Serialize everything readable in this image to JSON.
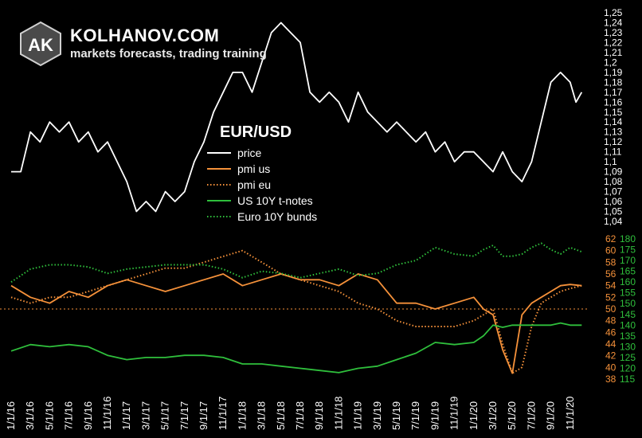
{
  "brand": {
    "logo_text": "AK",
    "name": "KOLHANOV.COM",
    "tagline": "markets forecasts, trading training"
  },
  "chart_data": {
    "type": "line",
    "title": "EUR/USD",
    "colors": {
      "price": "#ffffff",
      "pmi_us": "#f5913a",
      "pmi_eu": "#f5913a",
      "us10y": "#2fbf3c",
      "euro10y": "#2fbf3c",
      "refline": "#f5913a"
    },
    "legend": {
      "placement": "center",
      "items": [
        {
          "label": "price",
          "color": "#ffffff",
          "dash": "solid"
        },
        {
          "label": "pmi us",
          "color": "#f5913a",
          "dash": "solid"
        },
        {
          "label": "pmi eu",
          "color": "#f5913a",
          "dash": "dotted"
        },
        {
          "label": "US 10Y t-notes",
          "color": "#2fbf3c",
          "dash": "solid"
        },
        {
          "label": "Euro 10Y bunds",
          "color": "#2fbf3c",
          "dash": "dotted"
        }
      ]
    },
    "x_ticks": [
      "1/1/16",
      "3/1/16",
      "5/1/16",
      "7/1/16",
      "9/1/16",
      "11/1/16",
      "1/1/17",
      "3/1/17",
      "5/1/17",
      "7/1/17",
      "9/1/17",
      "11/1/17",
      "1/1/18",
      "3/1/18",
      "5/1/18",
      "7/1/18",
      "9/1/18",
      "11/1/18",
      "1/1/19",
      "3/1/19",
      "5/1/19",
      "7/1/19",
      "9/1/19",
      "11/1/19",
      "1/1/20",
      "3/1/20",
      "5/1/20",
      "7/1/20",
      "9/1/20",
      "11/1/20"
    ],
    "axes": {
      "price": {
        "range": [
          1.04,
          1.25
        ],
        "ticks": [
          "1,25",
          "1,24",
          "1,23",
          "1,22",
          "1,21",
          "1,2",
          "1,19",
          "1,18",
          "1,17",
          "1,16",
          "1,15",
          "1,14",
          "1,13",
          "1,12",
          "1,11",
          "1,1",
          "1,09",
          "1,08",
          "1,07",
          "1,06",
          "1,05",
          "1,04"
        ]
      },
      "pmi": {
        "range": [
          38,
          62
        ],
        "ticks": [
          "62",
          "60",
          "58",
          "56",
          "54",
          "52",
          "50",
          "48",
          "46",
          "44",
          "42",
          "40",
          "38"
        ]
      },
      "bonds": {
        "range": [
          115,
          180
        ],
        "ticks": [
          "180",
          "175",
          "170",
          "165",
          "160",
          "155",
          "150",
          "145",
          "140",
          "135",
          "130",
          "125",
          "120",
          "115"
        ]
      }
    },
    "reference_line": {
      "axis": "pmi",
      "value": 50,
      "style": "dotted"
    },
    "series": [
      {
        "name": "price",
        "axis": "price",
        "style": "solid",
        "x": [
          0,
          0.5,
          1,
          1.5,
          2,
          2.5,
          3,
          3.5,
          4,
          4.5,
          5,
          5.5,
          6,
          6.5,
          7,
          7.5,
          8,
          8.5,
          9,
          9.5,
          10,
          10.5,
          11,
          11.5,
          12,
          12.5,
          13,
          13.5,
          14,
          14.5,
          15,
          15.5,
          16,
          16.5,
          17,
          17.5,
          18,
          18.5,
          19,
          19.5,
          20,
          20.5,
          21,
          21.5,
          22,
          22.5,
          23,
          23.5,
          24,
          24.5,
          25,
          25.5,
          26,
          26.5,
          27,
          27.5,
          28,
          28.5,
          29,
          29.3,
          29.6
        ],
        "values": [
          1.09,
          1.09,
          1.13,
          1.12,
          1.14,
          1.13,
          1.14,
          1.12,
          1.13,
          1.11,
          1.12,
          1.1,
          1.08,
          1.05,
          1.06,
          1.05,
          1.07,
          1.06,
          1.07,
          1.1,
          1.12,
          1.15,
          1.17,
          1.19,
          1.19,
          1.17,
          1.2,
          1.23,
          1.24,
          1.23,
          1.22,
          1.17,
          1.16,
          1.17,
          1.16,
          1.14,
          1.17,
          1.15,
          1.14,
          1.13,
          1.14,
          1.13,
          1.12,
          1.13,
          1.11,
          1.12,
          1.1,
          1.11,
          1.11,
          1.1,
          1.09,
          1.11,
          1.09,
          1.08,
          1.1,
          1.14,
          1.18,
          1.19,
          1.18,
          1.16,
          1.17
        ]
      },
      {
        "name": "pmi us",
        "axis": "pmi",
        "style": "solid",
        "x": [
          0,
          1,
          2,
          3,
          4,
          5,
          6,
          7,
          8,
          9,
          10,
          11,
          12,
          13,
          14,
          15,
          16,
          17,
          18,
          19,
          20,
          21,
          22,
          23,
          24,
          24.5,
          25,
          25.5,
          26,
          26.5,
          27,
          27.5,
          28,
          28.5,
          29,
          29.6
        ],
        "values": [
          54,
          52,
          51,
          53,
          52,
          54,
          55,
          54,
          53,
          54,
          55,
          56,
          54,
          55,
          56,
          55,
          55,
          54,
          56,
          55,
          51,
          51,
          50,
          51,
          52,
          50,
          49,
          43,
          39,
          49,
          51,
          52,
          53,
          54,
          54.2,
          54
        ]
      },
      {
        "name": "pmi eu",
        "axis": "pmi",
        "style": "dotted",
        "x": [
          0,
          1,
          2,
          3,
          4,
          5,
          6,
          7,
          8,
          9,
          10,
          11,
          12,
          13,
          14,
          15,
          16,
          17,
          18,
          19,
          20,
          21,
          22,
          23,
          24,
          24.5,
          25,
          25.5,
          26,
          26.5,
          27,
          27.5,
          28,
          28.5,
          29,
          29.6
        ],
        "values": [
          52,
          51,
          52,
          52,
          53,
          54,
          55,
          56,
          57,
          57,
          58,
          59,
          60,
          58,
          56,
          55,
          54,
          53,
          51,
          50,
          48,
          47,
          47,
          47,
          48,
          49,
          50,
          44,
          39,
          40,
          47,
          51,
          52,
          53,
          53.5,
          54
        ]
      },
      {
        "name": "US 10Y t-notes",
        "axis": "bonds",
        "style": "solid",
        "x": [
          0,
          1,
          2,
          3,
          4,
          5,
          6,
          7,
          8,
          9,
          10,
          11,
          12,
          13,
          14,
          15,
          16,
          17,
          18,
          19,
          20,
          21,
          22,
          23,
          24,
          24.5,
          25,
          25.5,
          26,
          26.5,
          27,
          27.5,
          28,
          28.5,
          29,
          29.6
        ],
        "values": [
          128,
          131,
          130,
          131,
          130,
          126,
          124,
          125,
          125,
          126,
          126,
          125,
          122,
          122,
          121,
          120,
          119,
          118,
          120,
          121,
          124,
          127,
          132,
          131,
          132,
          135,
          140,
          139,
          140,
          140,
          140,
          140,
          140,
          141,
          140,
          140
        ]
      },
      {
        "name": "Euro 10Y bunds",
        "axis": "bonds",
        "style": "dotted",
        "x": [
          0,
          1,
          2,
          3,
          4,
          5,
          6,
          7,
          8,
          9,
          10,
          11,
          12,
          13,
          14,
          15,
          16,
          17,
          18,
          19,
          20,
          21,
          22,
          23,
          24,
          24.5,
          25,
          25.5,
          26,
          26.5,
          27,
          27.5,
          28,
          28.5,
          29,
          29.6
        ],
        "values": [
          160,
          166,
          168,
          168,
          167,
          164,
          166,
          167,
          168,
          168,
          168,
          166,
          162,
          165,
          164,
          162,
          164,
          166,
          163,
          164,
          168,
          170,
          176,
          173,
          172,
          175,
          177,
          172,
          172,
          173,
          176,
          178,
          175,
          173,
          176,
          174
        ]
      }
    ]
  }
}
